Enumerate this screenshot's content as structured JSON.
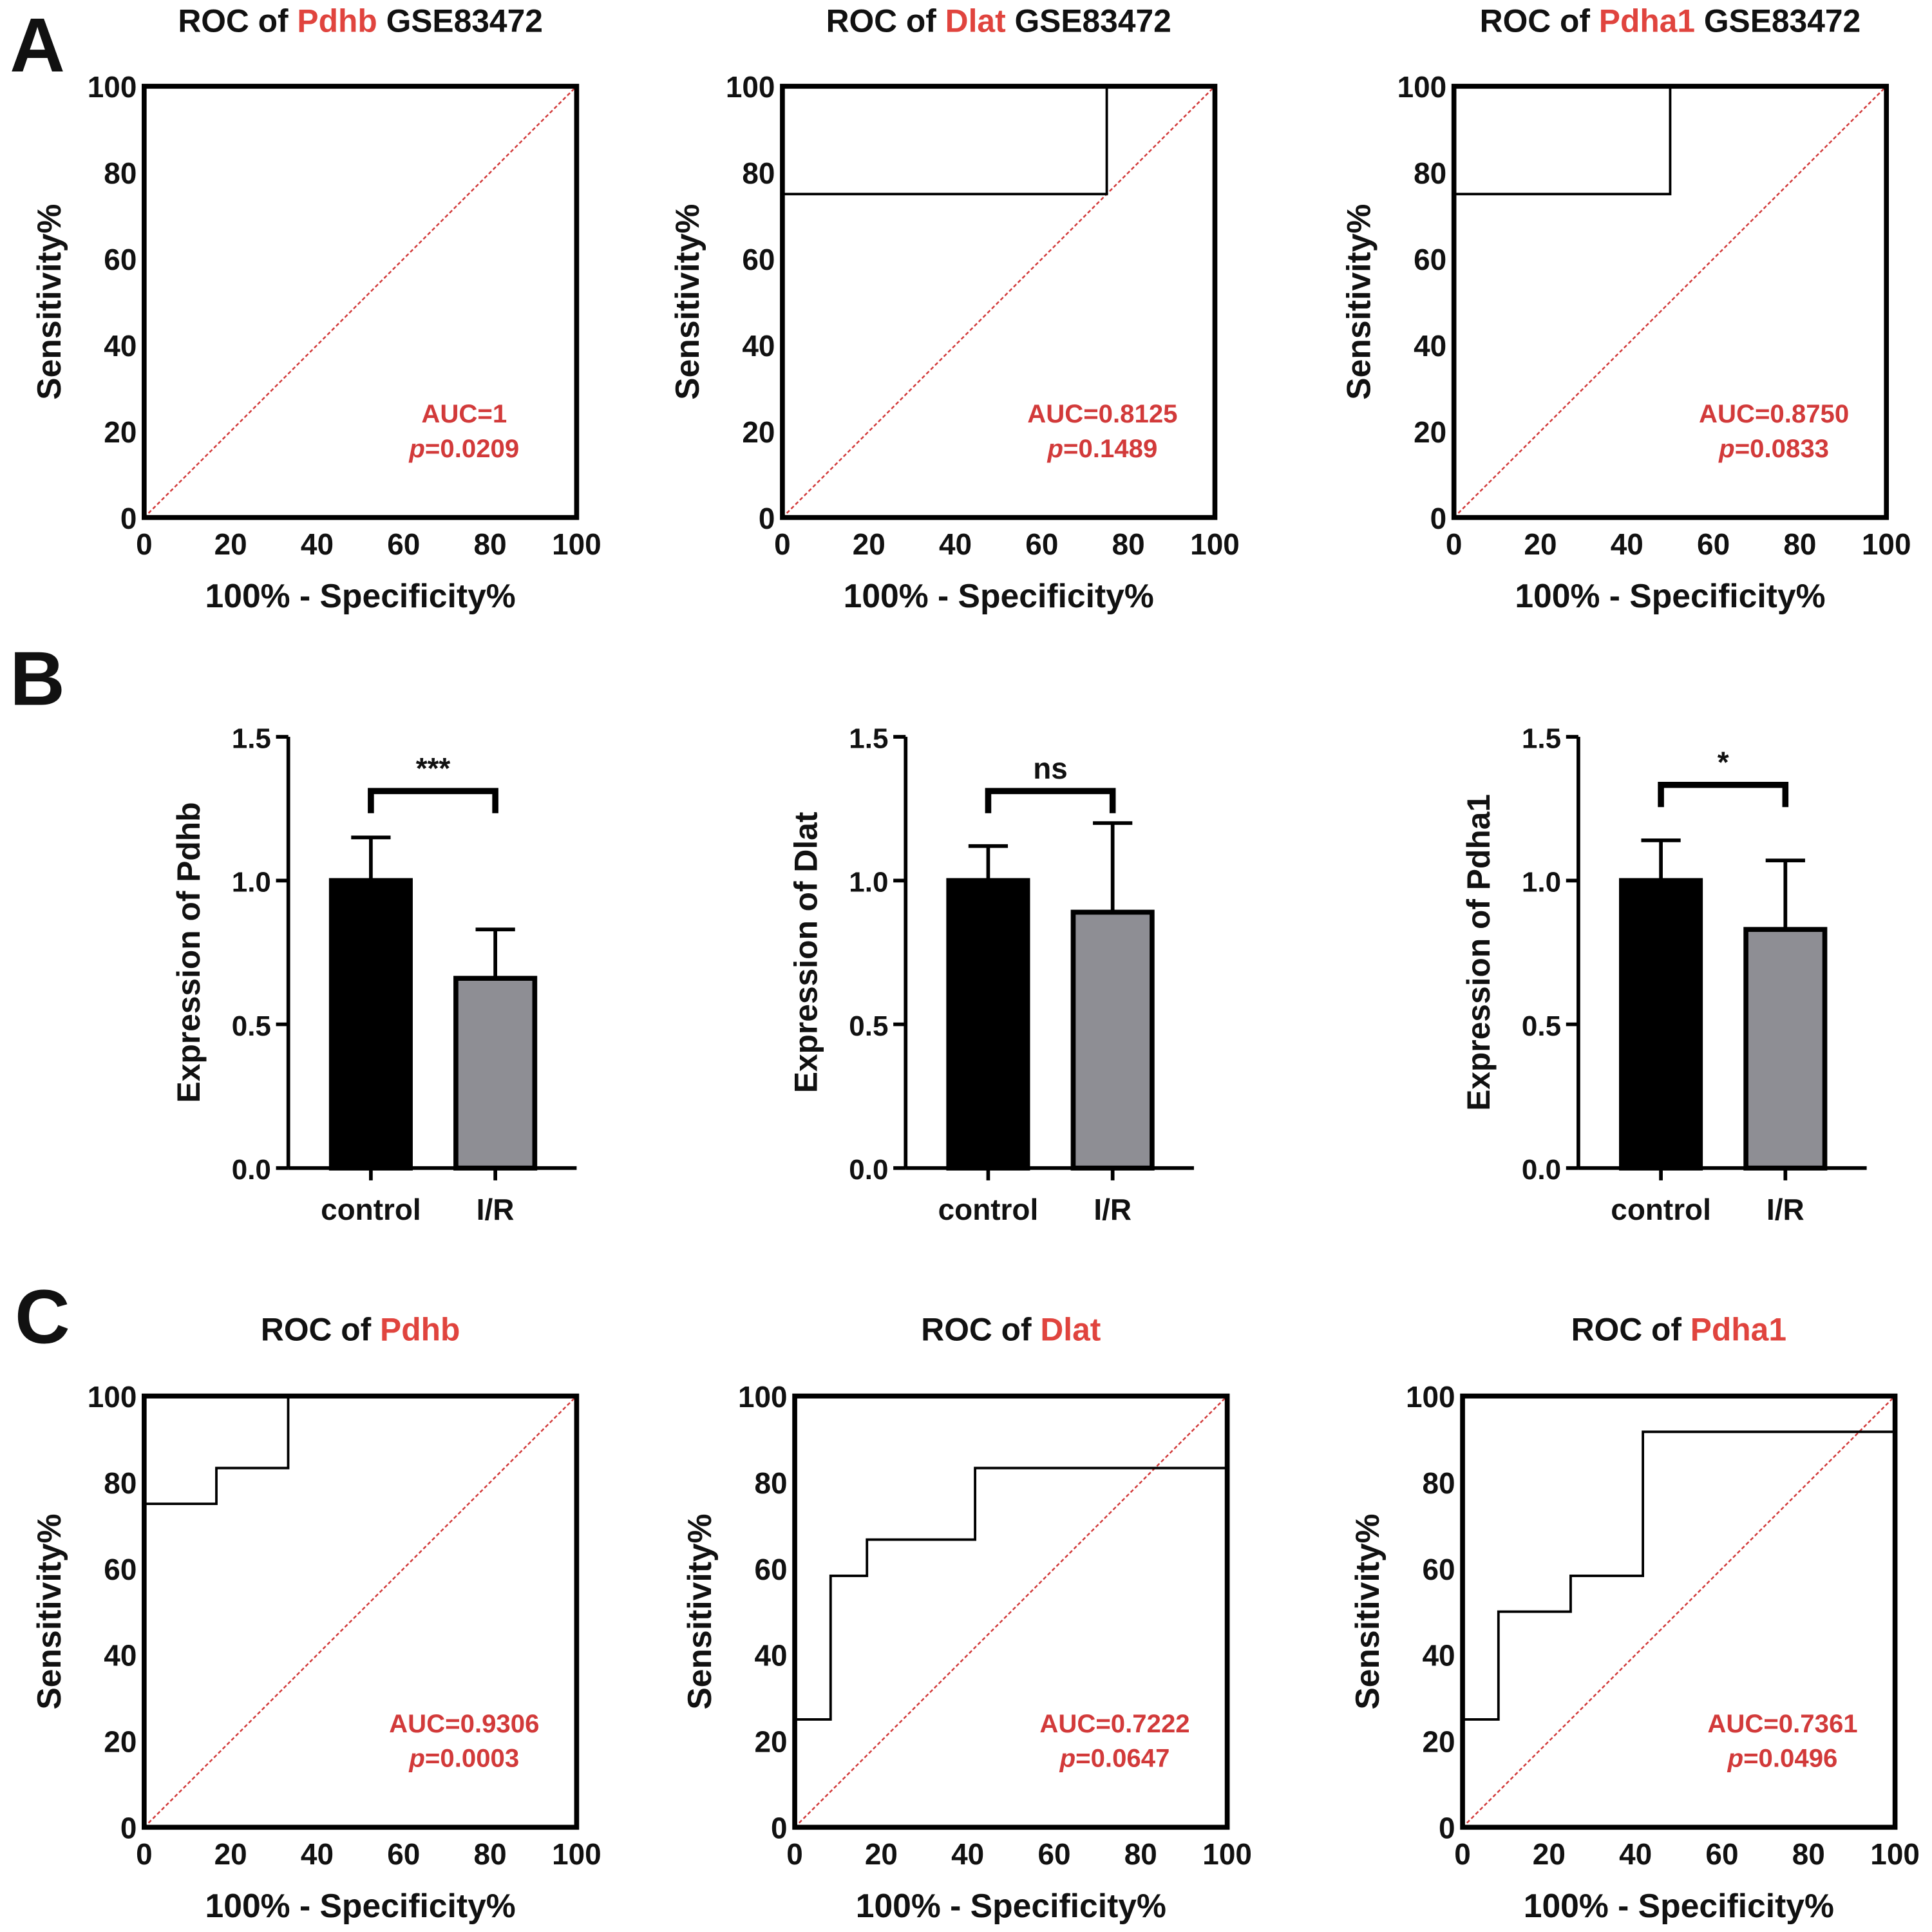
{
  "panels": [
    "A",
    "B",
    "C"
  ],
  "colors": {
    "annotation_red": "#d23a3a",
    "gene_red": "#e0443e",
    "bar_control": "#000000",
    "bar_ir": "#8e8e94",
    "reference_line": "#d23a3a"
  },
  "chart_data": [
    {
      "panel": "A",
      "type": "line",
      "title_prefix": "ROC of ",
      "title_gene": "Pdhb",
      "title_suffix": " GSE83472",
      "xlabel": "100% - Specificity%",
      "ylabel": "Sensitivity%",
      "xlim": [
        0,
        100
      ],
      "ylim": [
        0,
        100
      ],
      "xticks": [
        "0",
        "20",
        "40",
        "60",
        "80",
        "100"
      ],
      "yticks": [
        "0",
        "20",
        "40",
        "60",
        "80",
        "100"
      ],
      "series": [
        {
          "x": [
            0,
            0,
            100
          ],
          "y": [
            0,
            100,
            100
          ]
        }
      ],
      "reference_line": "diagonal dotted",
      "auc_text": "AUC=1",
      "p_symbol": "p",
      "p_value": "=0.0209"
    },
    {
      "panel": "A",
      "type": "line",
      "title_prefix": "ROC of ",
      "title_gene": "Dlat",
      "title_suffix": " GSE83472",
      "xlabel": "100% - Specificity%",
      "ylabel": "Sensitivity%",
      "xlim": [
        0,
        100
      ],
      "ylim": [
        0,
        100
      ],
      "xticks": [
        "0",
        "20",
        "40",
        "60",
        "80",
        "100"
      ],
      "yticks": [
        "0",
        "20",
        "40",
        "60",
        "80",
        "100"
      ],
      "series": [
        {
          "x": [
            0,
            0,
            75,
            75,
            100
          ],
          "y": [
            0,
            75,
            75,
            100,
            100
          ]
        }
      ],
      "reference_line": "diagonal dotted",
      "auc_text": "AUC=0.8125",
      "p_symbol": "p",
      "p_value": "=0.1489"
    },
    {
      "panel": "A",
      "type": "line",
      "title_prefix": "ROC of ",
      "title_gene": "Pdha1",
      "title_suffix": " GSE83472",
      "xlabel": "100% - Specificity%",
      "ylabel": "Sensitivity%",
      "xlim": [
        0,
        100
      ],
      "ylim": [
        0,
        100
      ],
      "xticks": [
        "0",
        "20",
        "40",
        "60",
        "80",
        "100"
      ],
      "yticks": [
        "0",
        "20",
        "40",
        "60",
        "80",
        "100"
      ],
      "series": [
        {
          "x": [
            0,
            0,
            50,
            50,
            100
          ],
          "y": [
            0,
            75,
            75,
            100,
            100
          ]
        }
      ],
      "reference_line": "diagonal dotted",
      "auc_text": "AUC=0.8750",
      "p_symbol": "p",
      "p_value": "=0.0833"
    },
    {
      "panel": "B",
      "type": "bar",
      "categories": [
        "control",
        "I/R"
      ],
      "values": [
        1.0,
        0.66
      ],
      "error_upper": [
        1.15,
        0.83
      ],
      "ylabel": "Expression of Pdhb",
      "ylim": [
        0,
        1.5
      ],
      "yticks": [
        "0.0",
        "0.5",
        "1.0",
        "1.5"
      ],
      "significance": "***"
    },
    {
      "panel": "B",
      "type": "bar",
      "categories": [
        "control",
        "I/R"
      ],
      "values": [
        1.0,
        0.89
      ],
      "error_upper": [
        1.12,
        1.2
      ],
      "ylabel": "Expression of Dlat",
      "ylim": [
        0,
        1.5
      ],
      "yticks": [
        "0.0",
        "0.5",
        "1.0",
        "1.5"
      ],
      "significance": "ns"
    },
    {
      "panel": "B",
      "type": "bar",
      "categories": [
        "control",
        "I/R"
      ],
      "values": [
        1.0,
        0.83
      ],
      "error_upper": [
        1.14,
        1.07
      ],
      "ylabel": "Expression of Pdha1",
      "ylim": [
        0,
        1.5
      ],
      "yticks": [
        "0.0",
        "0.5",
        "1.0",
        "1.5"
      ],
      "significance": "*"
    },
    {
      "panel": "C",
      "type": "line",
      "title_prefix": "ROC of ",
      "title_gene": "Pdhb",
      "title_suffix": "",
      "xlabel": "100% - Specificity%",
      "ylabel": "Sensitivity%",
      "xlim": [
        0,
        100
      ],
      "ylim": [
        0,
        100
      ],
      "xticks": [
        "0",
        "20",
        "40",
        "60",
        "80",
        "100"
      ],
      "yticks": [
        "0",
        "20",
        "40",
        "60",
        "80",
        "100"
      ],
      "series": [
        {
          "x": [
            0,
            0,
            16.7,
            16.7,
            33.3,
            33.3,
            100
          ],
          "y": [
            0,
            75,
            75,
            83.3,
            83.3,
            100,
            100
          ]
        }
      ],
      "reference_line": "diagonal dotted",
      "auc_text": "AUC=0.9306",
      "p_symbol": "p",
      "p_value": "=0.0003"
    },
    {
      "panel": "C",
      "type": "line",
      "title_prefix": "ROC of ",
      "title_gene": "Dlat",
      "title_suffix": "",
      "xlabel": "100% - Specificity%",
      "ylabel": "Sensitivity%",
      "xlim": [
        0,
        100
      ],
      "ylim": [
        0,
        100
      ],
      "xticks": [
        "0",
        "20",
        "40",
        "60",
        "80",
        "100"
      ],
      "yticks": [
        "0",
        "20",
        "40",
        "60",
        "80",
        "100"
      ],
      "series": [
        {
          "x": [
            0,
            0,
            8.3,
            8.3,
            16.7,
            16.7,
            41.7,
            41.7,
            100,
            100
          ],
          "y": [
            0,
            25,
            25,
            58.3,
            58.3,
            66.7,
            66.7,
            83.3,
            83.3,
            100
          ]
        }
      ],
      "reference_line": "diagonal dotted",
      "auc_text": "AUC=0.7222",
      "p_symbol": "p",
      "p_value": "=0.0647"
    },
    {
      "panel": "C",
      "type": "line",
      "title_prefix": "ROC of ",
      "title_gene": "Pdha1",
      "title_suffix": "",
      "xlabel": "100% - Specificity%",
      "ylabel": "Sensitivity%",
      "xlim": [
        0,
        100
      ],
      "ylim": [
        0,
        100
      ],
      "xticks": [
        "0",
        "20",
        "40",
        "60",
        "80",
        "100"
      ],
      "yticks": [
        "0",
        "20",
        "40",
        "60",
        "80",
        "100"
      ],
      "series": [
        {
          "x": [
            0,
            0,
            8.3,
            8.3,
            25,
            25,
            41.7,
            41.7,
            100,
            100
          ],
          "y": [
            0,
            25,
            25,
            50,
            50,
            58.3,
            58.3,
            91.7,
            91.7,
            100
          ]
        }
      ],
      "reference_line": "diagonal dotted",
      "auc_text": "AUC=0.7361",
      "p_symbol": "p",
      "p_value": "=0.0496"
    }
  ]
}
